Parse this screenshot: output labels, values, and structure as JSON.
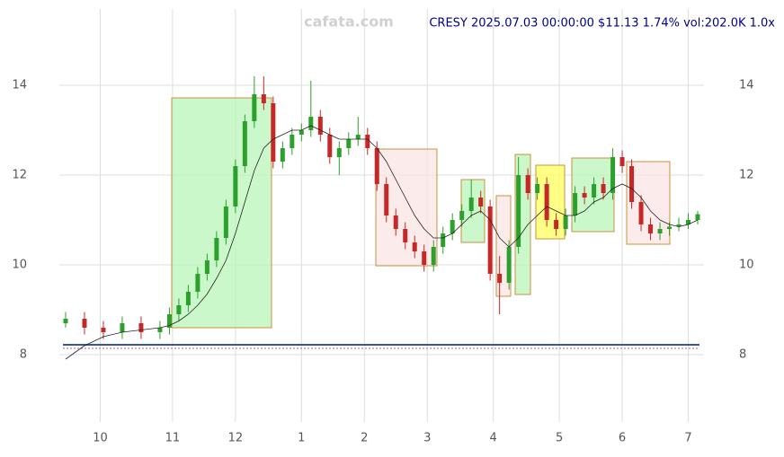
{
  "chart_data": {
    "type": "candlestick",
    "title": "CRESY 2025.07.03 00:00:00 $11.13 1.74% vol:202.0K 1.0x",
    "watermark": "cafata.com",
    "xlim": [
      -2,
      203
    ],
    "ylim": [
      6.5,
      15.7
    ],
    "yticks": [
      8,
      10,
      12,
      14
    ],
    "xticks": [
      {
        "value": 11,
        "label": "10"
      },
      {
        "value": 34,
        "label": "11"
      },
      {
        "value": 54,
        "label": "12"
      },
      {
        "value": 75,
        "label": "1"
      },
      {
        "value": 95,
        "label": "2"
      },
      {
        "value": 115,
        "label": "3"
      },
      {
        "value": 136,
        "label": "4"
      },
      {
        "value": 157,
        "label": "5"
      },
      {
        "value": 177,
        "label": "6"
      },
      {
        "value": 198,
        "label": "7"
      }
    ],
    "grid": true,
    "up_color": "#2ca02c",
    "down_color": "#c62828",
    "ma_color": "#222222",
    "x": [
      0,
      6,
      12,
      18,
      24,
      30,
      33,
      36,
      39,
      42,
      45,
      48,
      51,
      54,
      57,
      60,
      63,
      66,
      69,
      72,
      75,
      78,
      81,
      84,
      87,
      90,
      93,
      96,
      99,
      102,
      105,
      108,
      111,
      114,
      117,
      120,
      123,
      126,
      129,
      132,
      135,
      138,
      141,
      144,
      147,
      150,
      153,
      156,
      159,
      162,
      165,
      168,
      171,
      174,
      177,
      180,
      183,
      186,
      189,
      192,
      195,
      198,
      201
    ],
    "open": [
      8.7,
      8.8,
      8.6,
      8.5,
      8.7,
      8.5,
      8.6,
      8.9,
      9.1,
      9.4,
      9.8,
      10.1,
      10.6,
      11.3,
      12.2,
      13.2,
      13.8,
      13.6,
      12.3,
      12.6,
      12.9,
      13.0,
      13.3,
      12.9,
      12.4,
      12.6,
      12.8,
      12.9,
      12.6,
      11.8,
      11.1,
      10.8,
      10.5,
      10.3,
      10.0,
      10.4,
      10.7,
      11.0,
      11.2,
      11.5,
      11.3,
      9.8,
      9.6,
      10.4,
      12.0,
      11.6,
      11.8,
      11.0,
      10.8,
      11.1,
      11.6,
      11.5,
      11.8,
      11.6,
      12.4,
      12.2,
      11.4,
      10.9,
      10.7,
      10.8,
      10.85,
      10.9,
      11.0
    ],
    "high": [
      8.95,
      8.95,
      8.75,
      8.85,
      8.85,
      8.75,
      9.05,
      9.25,
      9.55,
      9.95,
      10.25,
      10.75,
      11.45,
      12.35,
      13.35,
      14.2,
      14.2,
      13.75,
      12.75,
      13.05,
      13.15,
      14.1,
      13.45,
      13.05,
      12.75,
      12.95,
      13.3,
      13.05,
      12.75,
      11.95,
      11.25,
      10.95,
      10.65,
      10.45,
      10.55,
      10.85,
      11.15,
      11.35,
      11.9,
      11.65,
      11.45,
      10.2,
      10.55,
      12.4,
      12.15,
      11.95,
      11.95,
      11.15,
      11.25,
      11.75,
      11.75,
      11.95,
      11.95,
      12.6,
      12.55,
      12.35,
      11.55,
      11.05,
      10.95,
      10.95,
      11.05,
      11.15,
      11.2
    ],
    "low": [
      8.6,
      8.45,
      8.35,
      8.35,
      8.35,
      8.35,
      8.45,
      8.75,
      8.95,
      9.25,
      9.65,
      9.95,
      10.45,
      11.15,
      12.05,
      13.05,
      13.45,
      12.15,
      12.15,
      12.45,
      12.75,
      12.85,
      12.75,
      12.25,
      12.0,
      12.45,
      12.65,
      12.45,
      11.65,
      10.95,
      10.65,
      10.35,
      10.15,
      9.85,
      9.85,
      10.25,
      10.55,
      10.85,
      11.05,
      11.15,
      9.65,
      8.9,
      9.45,
      10.25,
      11.45,
      11.45,
      10.85,
      10.65,
      10.65,
      10.95,
      11.35,
      11.35,
      11.45,
      11.45,
      12.05,
      11.25,
      10.75,
      10.55,
      10.55,
      10.65,
      10.75,
      10.8,
      10.9
    ],
    "close": [
      8.8,
      8.6,
      8.5,
      8.7,
      8.5,
      8.6,
      8.9,
      9.1,
      9.4,
      9.8,
      10.1,
      10.6,
      11.3,
      12.2,
      13.2,
      13.8,
      13.6,
      12.3,
      12.6,
      12.9,
      13.0,
      13.3,
      12.9,
      12.4,
      12.6,
      12.8,
      12.9,
      12.6,
      11.8,
      11.1,
      10.8,
      10.5,
      10.3,
      10.0,
      10.4,
      10.7,
      11.0,
      11.2,
      11.5,
      11.3,
      9.8,
      9.6,
      10.4,
      12.0,
      11.6,
      11.8,
      11.0,
      10.8,
      11.1,
      11.6,
      11.5,
      11.8,
      11.6,
      12.4,
      12.2,
      11.4,
      10.9,
      10.7,
      10.8,
      10.85,
      10.9,
      11.0,
      11.13
    ],
    "ma": [
      7.9,
      8.2,
      8.4,
      8.5,
      8.55,
      8.6,
      8.65,
      8.75,
      8.9,
      9.1,
      9.35,
      9.7,
      10.1,
      10.7,
      11.4,
      12.1,
      12.6,
      12.8,
      12.9,
      13.0,
      13.0,
      13.1,
      13.0,
      12.9,
      12.8,
      12.8,
      12.8,
      12.8,
      12.6,
      12.3,
      11.9,
      11.5,
      11.1,
      10.8,
      10.6,
      10.6,
      10.7,
      10.9,
      11.1,
      11.2,
      11.0,
      10.6,
      10.4,
      10.6,
      10.9,
      11.1,
      11.3,
      11.2,
      11.1,
      11.1,
      11.2,
      11.4,
      11.5,
      11.7,
      11.8,
      11.7,
      11.5,
      11.2,
      11.0,
      10.9,
      10.85,
      10.9,
      11.0
    ]
  }
}
